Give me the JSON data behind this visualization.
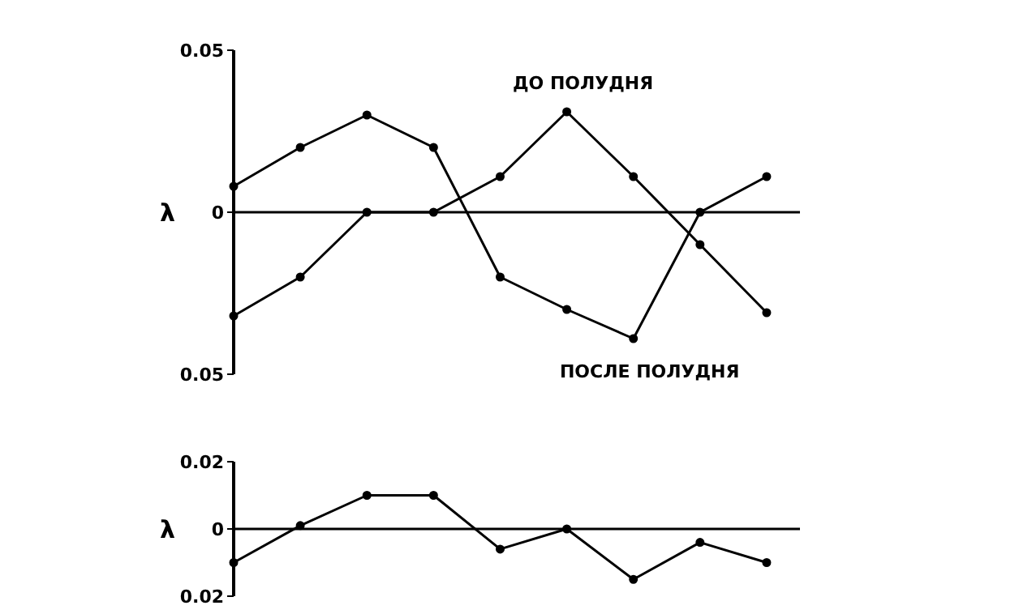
{
  "chart_data": [
    {
      "type": "line",
      "ylabel": "λ",
      "categories": [
        null,
        null,
        null,
        null,
        null,
        null,
        null,
        null,
        null
      ],
      "ylim": [
        -0.05,
        0.05
      ],
      "yticks": [
        0.05,
        0,
        {
          "value": -0.05,
          "label": "0.05"
        }
      ],
      "ref_lines": [
        {
          "axis": "y",
          "value": 0
        }
      ],
      "grid": false,
      "legend": false,
      "tick_labels": "y",
      "marker": "circle",
      "line_style": "solid",
      "series": [
        {
          "name": "ДО ПОЛУДНЯ",
          "color": "#000000",
          "values": [
            -0.032,
            -0.02,
            0,
            0,
            0.011,
            0.031,
            0.011,
            -0.01,
            -0.031
          ]
        },
        {
          "name": "ПОСЛЕ ПОЛУДНЯ",
          "color": "#000000",
          "values": [
            0.008,
            0.02,
            0.03,
            0.02,
            -0.02,
            -0.03,
            -0.039,
            0,
            0.011
          ]
        }
      ]
    },
    {
      "type": "line",
      "ylabel": "λ",
      "categories": [
        null,
        null,
        null,
        null,
        null,
        null,
        null,
        null,
        null
      ],
      "ylim": [
        -0.02,
        0.02
      ],
      "yticks": [
        0.02,
        0,
        {
          "value": -0.02,
          "label": "0.02"
        }
      ],
      "ref_lines": [
        {
          "axis": "y",
          "value": 0
        }
      ],
      "grid": false,
      "legend": false,
      "tick_labels": "y",
      "marker": "circle",
      "line_style": "solid",
      "series": [
        {
          "color": "#000000",
          "values": [
            -0.01,
            0.001,
            0.01,
            0.01,
            -0.006,
            0,
            -0.015,
            -0.004,
            -0.01
          ]
        }
      ]
    }
  ]
}
